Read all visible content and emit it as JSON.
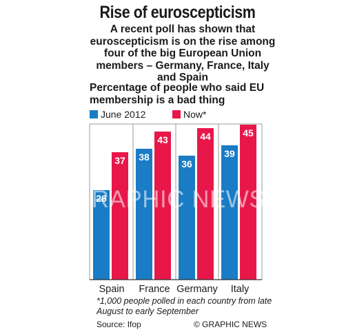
{
  "title": "Rise of euroscepticism",
  "subtitle": "A recent poll has shown that euroscepticism is on the rise among four of the big European Union members – Germany, France, Italy and Spain",
  "question": "Percentage of people who said EU membership is a bad thing",
  "colors": {
    "june": "#1a7cc4",
    "now": "#e8174a",
    "grid": "#9a9a9a"
  },
  "watermark": "GRAPHIC NEWS",
  "footnote": "*1,000 people polled in each country from late August to early September",
  "source": "Source: Ifop",
  "credit": "© GRAPHIC NEWS",
  "chart_data": {
    "type": "bar",
    "categories": [
      "Spain",
      "France",
      "Germany",
      "Italy"
    ],
    "series": [
      {
        "name": "June 2012",
        "values": [
          26,
          38,
          36,
          39
        ]
      },
      {
        "name": "Now*",
        "values": [
          37,
          43,
          44,
          45
        ]
      }
    ],
    "ylim": [
      0,
      50
    ]
  }
}
